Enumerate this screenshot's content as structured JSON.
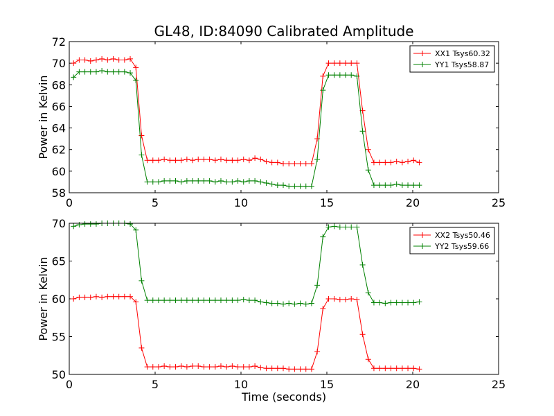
{
  "chart_data": [
    {
      "type": "line",
      "title": "GL48, ID:84090 Calibrated Amplitude",
      "xlabel": "",
      "ylabel": "Power in Kelvin",
      "xlim": [
        0,
        25
      ],
      "ylim": [
        58,
        72
      ],
      "xticks": [
        0,
        5,
        10,
        15,
        20,
        25
      ],
      "yticks": [
        58,
        60,
        62,
        64,
        66,
        68,
        70,
        72
      ],
      "grid": false,
      "legend_position": "top-right",
      "x": [
        0.25,
        0.58,
        0.91,
        1.24,
        1.57,
        1.9,
        2.23,
        2.56,
        2.89,
        3.22,
        3.55,
        3.88,
        4.21,
        4.54,
        4.87,
        5.2,
        5.53,
        5.86,
        6.19,
        6.52,
        6.85,
        7.18,
        7.51,
        7.84,
        8.17,
        8.5,
        8.83,
        9.16,
        9.49,
        9.82,
        10.15,
        10.48,
        10.81,
        11.14,
        11.47,
        11.8,
        12.13,
        12.46,
        12.79,
        13.12,
        13.45,
        13.78,
        14.11,
        14.44,
        14.77,
        15.1,
        15.43,
        15.76,
        16.09,
        16.42,
        16.75,
        17.08,
        17.41,
        17.74,
        18.07,
        18.4,
        18.73,
        19.06,
        19.39,
        19.72,
        20.05,
        20.38
      ],
      "series": [
        {
          "name": "XX1 Tsys60.32",
          "color": "#ff0000",
          "values": [
            70.0,
            70.3,
            70.3,
            70.2,
            70.3,
            70.4,
            70.3,
            70.4,
            70.3,
            70.3,
            70.4,
            69.6,
            63.3,
            61.0,
            61.0,
            61.0,
            61.1,
            61.0,
            61.0,
            61.0,
            61.1,
            61.0,
            61.1,
            61.1,
            61.1,
            61.0,
            61.1,
            61.0,
            61.0,
            61.0,
            61.1,
            61.0,
            61.2,
            61.1,
            60.9,
            60.8,
            60.8,
            60.7,
            60.7,
            60.7,
            60.7,
            60.7,
            60.7,
            63.0,
            68.8,
            70.0,
            70.0,
            70.0,
            70.0,
            70.0,
            70.0,
            65.6,
            62.0,
            60.8,
            60.8,
            60.8,
            60.8,
            60.9,
            60.8,
            60.9,
            61.0,
            60.8
          ]
        },
        {
          "name": "YY1 Tsys58.87",
          "color": "#008000",
          "values": [
            68.7,
            69.2,
            69.2,
            69.2,
            69.2,
            69.3,
            69.2,
            69.2,
            69.2,
            69.2,
            69.1,
            68.4,
            61.5,
            59.0,
            59.0,
            59.0,
            59.1,
            59.1,
            59.1,
            59.0,
            59.1,
            59.1,
            59.1,
            59.1,
            59.1,
            59.0,
            59.1,
            59.0,
            59.0,
            59.1,
            59.0,
            59.1,
            59.1,
            59.0,
            58.9,
            58.8,
            58.7,
            58.7,
            58.6,
            58.6,
            58.6,
            58.6,
            58.6,
            61.1,
            67.5,
            68.9,
            68.9,
            68.9,
            68.9,
            68.9,
            68.8,
            63.7,
            60.1,
            58.7,
            58.7,
            58.7,
            58.7,
            58.8,
            58.7,
            58.7,
            58.7,
            58.7
          ]
        }
      ]
    },
    {
      "type": "line",
      "title": "",
      "xlabel": "Time (seconds)",
      "ylabel": "Power in Kelvin",
      "xlim": [
        0,
        25
      ],
      "ylim": [
        50,
        70
      ],
      "xticks": [
        0,
        5,
        10,
        15,
        20,
        25
      ],
      "yticks": [
        50,
        55,
        60,
        65,
        70
      ],
      "grid": false,
      "legend_position": "top-right",
      "x": [
        0.25,
        0.58,
        0.91,
        1.24,
        1.57,
        1.9,
        2.23,
        2.56,
        2.89,
        3.22,
        3.55,
        3.88,
        4.21,
        4.54,
        4.87,
        5.2,
        5.53,
        5.86,
        6.19,
        6.52,
        6.85,
        7.18,
        7.51,
        7.84,
        8.17,
        8.5,
        8.83,
        9.16,
        9.49,
        9.82,
        10.15,
        10.48,
        10.81,
        11.14,
        11.47,
        11.8,
        12.13,
        12.46,
        12.79,
        13.12,
        13.45,
        13.78,
        14.11,
        14.44,
        14.77,
        15.1,
        15.43,
        15.76,
        16.09,
        16.42,
        16.75,
        17.08,
        17.41,
        17.74,
        18.07,
        18.4,
        18.73,
        19.06,
        19.39,
        19.72,
        20.05,
        20.38
      ],
      "series": [
        {
          "name": "XX2 Tsys50.46",
          "color": "#ff0000",
          "values": [
            60.0,
            60.2,
            60.2,
            60.2,
            60.3,
            60.2,
            60.3,
            60.3,
            60.3,
            60.3,
            60.3,
            59.6,
            53.5,
            51.0,
            51.0,
            51.0,
            51.1,
            51.0,
            51.0,
            51.1,
            51.0,
            51.1,
            51.1,
            51.0,
            51.0,
            51.0,
            51.1,
            51.0,
            51.1,
            51.0,
            51.0,
            51.0,
            51.1,
            50.9,
            50.8,
            50.8,
            50.8,
            50.8,
            50.7,
            50.7,
            50.7,
            50.7,
            50.7,
            53.0,
            58.7,
            60.0,
            60.0,
            59.9,
            59.9,
            60.0,
            59.9,
            55.3,
            52.0,
            50.8,
            50.8,
            50.8,
            50.8,
            50.8,
            50.8,
            50.8,
            50.8,
            50.7
          ]
        },
        {
          "name": "YY2 Tsys59.66",
          "color": "#008000",
          "values": [
            69.6,
            69.8,
            69.9,
            69.9,
            69.9,
            70.0,
            70.0,
            70.0,
            70.0,
            70.0,
            69.9,
            69.1,
            62.4,
            59.8,
            59.8,
            59.8,
            59.8,
            59.8,
            59.8,
            59.8,
            59.8,
            59.8,
            59.8,
            59.8,
            59.8,
            59.8,
            59.8,
            59.8,
            59.8,
            59.8,
            59.9,
            59.8,
            59.8,
            59.6,
            59.5,
            59.4,
            59.4,
            59.3,
            59.4,
            59.3,
            59.4,
            59.3,
            59.4,
            61.8,
            68.2,
            69.5,
            69.6,
            69.5,
            69.5,
            69.5,
            69.5,
            64.5,
            60.8,
            59.5,
            59.5,
            59.4,
            59.5,
            59.5,
            59.5,
            59.5,
            59.5,
            59.6
          ]
        }
      ]
    }
  ]
}
